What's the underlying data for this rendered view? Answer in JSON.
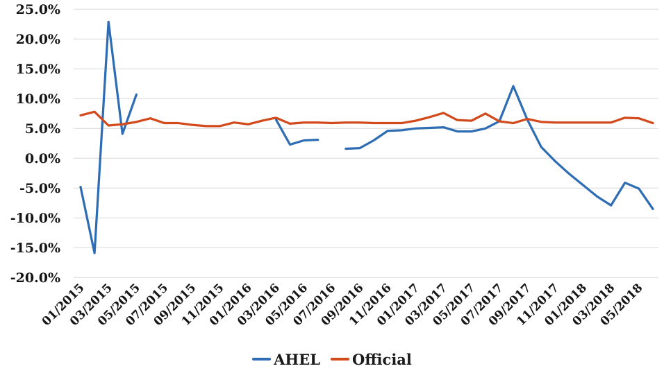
{
  "chart_data": {
    "type": "line",
    "title": "",
    "xlabel": "",
    "ylabel": "",
    "ylim": [
      -20,
      25
    ],
    "ytick_step": 5,
    "ytick_labels_top_to_bottom": [
      "25.0%",
      "20.0%",
      "15.0%",
      "10.0%",
      "5.0%",
      "0.0%",
      "-5.0%",
      "-10.0%",
      "-15.0%",
      "-20.0%"
    ],
    "grid": "horizontal-only",
    "legend_position": "bottom-center",
    "x": [
      "01/2015",
      "02/2015",
      "03/2015",
      "04/2015",
      "05/2015",
      "06/2015",
      "07/2015",
      "08/2015",
      "09/2015",
      "10/2015",
      "11/2015",
      "12/2015",
      "01/2016",
      "02/2016",
      "03/2016",
      "04/2016",
      "05/2016",
      "06/2016",
      "07/2016",
      "08/2016",
      "09/2016",
      "10/2016",
      "11/2016",
      "12/2016",
      "01/2017",
      "02/2017",
      "03/2017",
      "04/2017",
      "05/2017",
      "06/2017",
      "07/2017",
      "08/2017",
      "09/2017",
      "10/2017",
      "11/2017",
      "12/2017",
      "01/2018",
      "02/2018",
      "03/2018",
      "04/2018",
      "05/2018",
      "06/2018"
    ],
    "x_tick_labels": [
      "01/2015",
      "03/2015",
      "05/2015",
      "07/2015",
      "09/2015",
      "11/2015",
      "01/2016",
      "03/2016",
      "05/2016",
      "07/2016",
      "09/2016",
      "11/2016",
      "01/2017",
      "03/2017",
      "05/2017",
      "07/2017",
      "09/2017",
      "11/2017",
      "01/2018",
      "03/2018",
      "05/2018"
    ],
    "series": [
      {
        "name": "AHEL",
        "color": "#2E6DB4",
        "unit": "%",
        "values": [
          -4.8,
          -15.9,
          22.9,
          4.1,
          10.7,
          null,
          null,
          null,
          null,
          null,
          null,
          null,
          null,
          null,
          6.5,
          2.3,
          3.0,
          3.1,
          null,
          1.6,
          1.7,
          3.0,
          4.6,
          4.7,
          5.0,
          5.1,
          5.2,
          4.5,
          4.5,
          5.0,
          6.2,
          12.1,
          6.5,
          1.9,
          -0.5,
          -2.6,
          -4.5,
          -6.4,
          -7.9,
          -4.1,
          -5.1,
          -8.5
        ]
      },
      {
        "name": "Official",
        "color": "#D24A1C",
        "unit": "%",
        "values": [
          7.2,
          7.8,
          5.5,
          5.7,
          6.1,
          6.7,
          5.9,
          5.9,
          5.6,
          5.4,
          5.4,
          6.0,
          5.7,
          6.3,
          6.8,
          5.8,
          6.0,
          6.0,
          5.9,
          6.0,
          6.0,
          5.9,
          5.9,
          5.9,
          6.3,
          6.9,
          7.6,
          6.4,
          6.3,
          7.5,
          6.2,
          5.9,
          6.6,
          6.1,
          6.0,
          6.0,
          6.0,
          6.0,
          6.0,
          6.8,
          6.7,
          5.9
        ]
      }
    ]
  },
  "theme": {
    "background": "#FFFFFF",
    "grid_color": "#D8D8D8",
    "text_color": "#151515"
  }
}
